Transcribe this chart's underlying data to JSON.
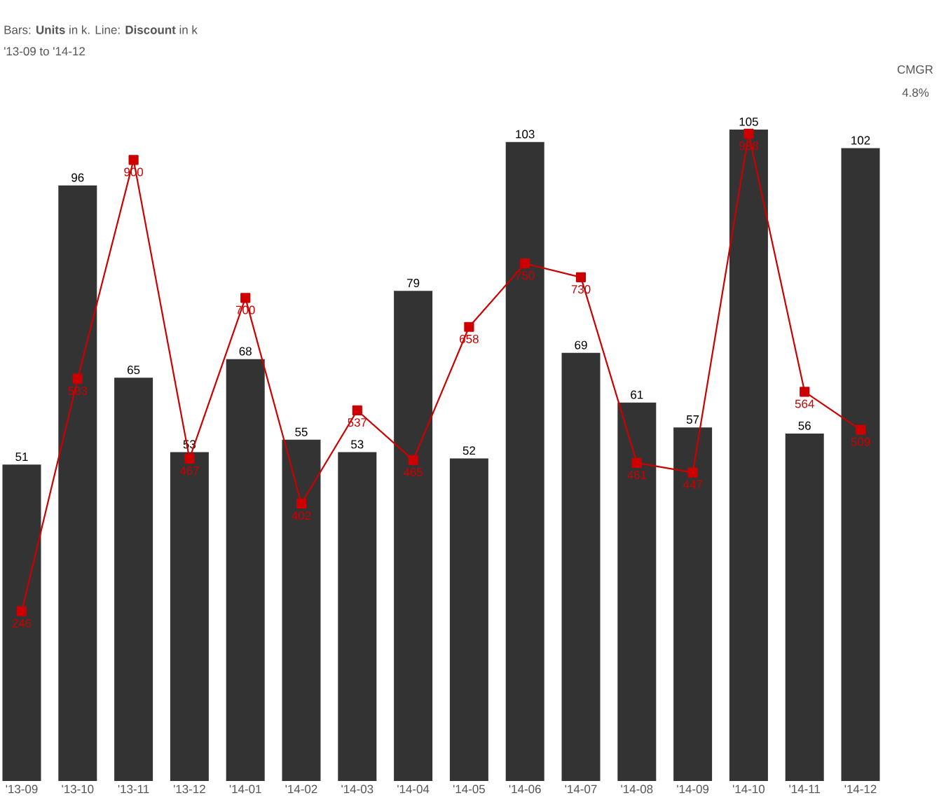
{
  "chart_data": {
    "type": "bar",
    "title": "Bars: **Units** in k. Line: **Discount** in k",
    "subtitle": "'13-09 to '14-12",
    "annotations": [
      "CMGR",
      "4.8%"
    ],
    "categories": [
      "'13-09",
      "'13-10",
      "'13-11",
      "'13-12",
      "'14-01",
      "'14-02",
      "'14-03",
      "'14-04",
      "'14-05",
      "'14-06",
      "'14-07",
      "'14-08",
      "'14-09",
      "'14-10",
      "'14-11",
      "'14-12"
    ],
    "series": [
      {
        "color": "#333333",
        "values": [
          51,
          96,
          65,
          53,
          68,
          55,
          53,
          79,
          52,
          103,
          69,
          61,
          57,
          105,
          56,
          102
        ]
      },
      {
        "type": "line",
        "axis": "y2",
        "color": "#cc0000",
        "marker": "square",
        "values": [
          246,
          583,
          900,
          467,
          700,
          402,
          537,
          465,
          658,
          750,
          730,
          461,
          447,
          938,
          564,
          509
        ]
      }
    ],
    "ylim": [
      0,
      105
    ],
    "y2lim": [
      0,
      944
    ],
    "data_labels": true
  }
}
